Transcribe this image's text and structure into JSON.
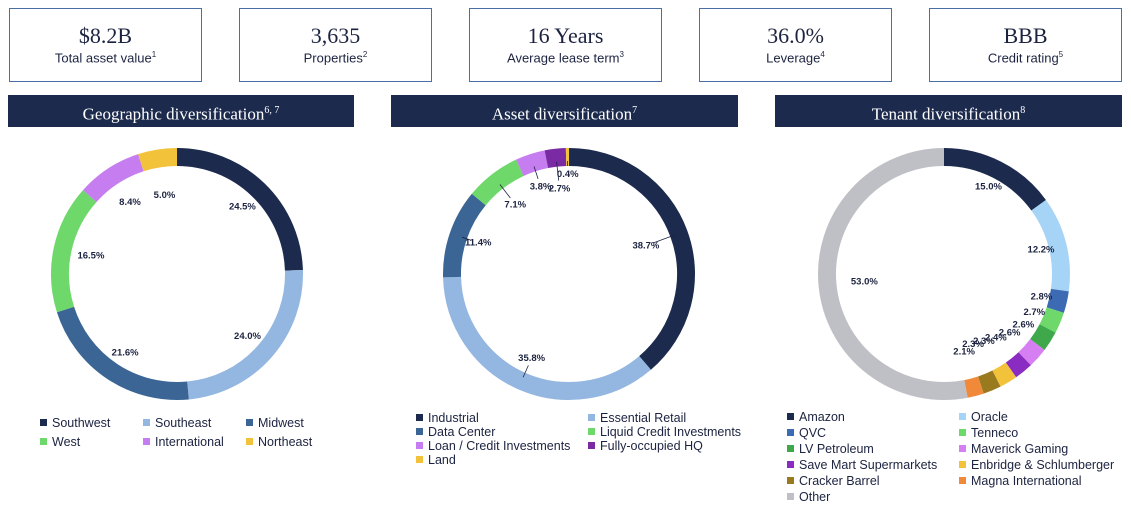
{
  "kpis": [
    {
      "value": "$8.2B",
      "label": "Total asset value",
      "sup": "1"
    },
    {
      "value": "3,635",
      "label": "Properties",
      "sup": "2"
    },
    {
      "value": "16 Years",
      "label": "Average lease term",
      "sup": "3"
    },
    {
      "value": "36.0%",
      "label": "Leverage",
      "sup": "4"
    },
    {
      "value": "BBB",
      "label": "Credit rating",
      "sup": "5"
    }
  ],
  "chart_data": [
    {
      "type": "pie",
      "title": "Geographic diversification",
      "title_sup": "6, 7",
      "categories": [
        "Southwest",
        "Southeast",
        "Midwest",
        "West",
        "International",
        "Northeast"
      ],
      "values": [
        24.5,
        24.0,
        21.6,
        16.5,
        8.4,
        5.0
      ],
      "value_labels": [
        "24.5%",
        "24.0%",
        "21.6%",
        "16.5%",
        "8.4%",
        "5.0%"
      ],
      "colors": [
        "#1c2a4d",
        "#93b7e0",
        "#3a6595",
        "#6ed86a",
        "#c57df0",
        "#f2c23a"
      ],
      "legend_columns": 3
    },
    {
      "type": "pie",
      "title": "Asset diversification",
      "title_sup": "7",
      "categories": [
        "Industrial",
        "Essential Retail",
        "Data Center",
        "Liquid Credit Investments",
        "Loan / Credit Investments",
        "Fully-occupied HQ",
        "Land"
      ],
      "values": [
        38.7,
        35.8,
        11.4,
        7.1,
        3.8,
        2.7,
        0.4
      ],
      "value_labels": [
        "38.7%",
        "35.8%",
        "11.4%",
        "7.1%",
        "3.8%",
        "2.7%",
        "0.4%"
      ],
      "colors": [
        "#1c2a4d",
        "#93b7e0",
        "#3a6595",
        "#6ed86a",
        "#c57df0",
        "#7a2aa3",
        "#f2c23a"
      ],
      "legend_columns": 2
    },
    {
      "type": "pie",
      "title": "Tenant diversification",
      "title_sup": "8",
      "categories": [
        "Amazon",
        "Oracle",
        "QVC",
        "Tenneco",
        "LV Petroleum",
        "Maverick Gaming",
        "Save Mart Supermarkets",
        "Enbridge & Schlumberger",
        "Cracker Barrel",
        "Magna International",
        "Other"
      ],
      "values": [
        15.0,
        12.2,
        2.8,
        2.7,
        2.6,
        2.6,
        2.4,
        2.3,
        2.3,
        2.1,
        53.0
      ],
      "value_labels": [
        "15.0%",
        "12.2%",
        "2.8%",
        "2.7%",
        "2.6%",
        "2.6%",
        "2.4%",
        "2.3%",
        "2.3%",
        "2.1%",
        "53.0%"
      ],
      "colors": [
        "#1c2a4d",
        "#a6d4f7",
        "#3d6bb3",
        "#6ed86a",
        "#3fa84a",
        "#d57ff2",
        "#8a2bc2",
        "#f2c23a",
        "#9a7a1e",
        "#f08a3a",
        "#bfbfc6"
      ],
      "legend_columns": 2
    }
  ]
}
